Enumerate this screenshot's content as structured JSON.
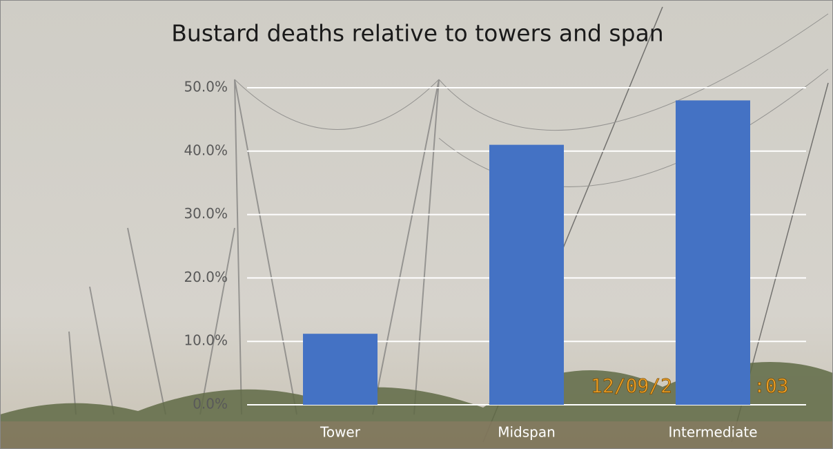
{
  "chart_data": {
    "type": "bar",
    "title": "Bustard deaths relative to towers and span",
    "categories": [
      "Tower",
      "Midspan",
      "Intermediate"
    ],
    "values": [
      11.2,
      41.0,
      48.0
    ],
    "color": "#4472c4",
    "ylim": [
      0,
      50
    ],
    "yticks": [
      {
        "value": 0,
        "label": "0.0%"
      },
      {
        "value": 10,
        "label": "10.0%"
      },
      {
        "value": 20,
        "label": "20.0%"
      },
      {
        "value": 30,
        "label": "30.0%"
      },
      {
        "value": 40,
        "label": "40.0%"
      },
      {
        "value": 50,
        "label": "50.0%"
      }
    ],
    "grid": true,
    "annotations": [
      "12/09/2",
      ":03"
    ]
  }
}
